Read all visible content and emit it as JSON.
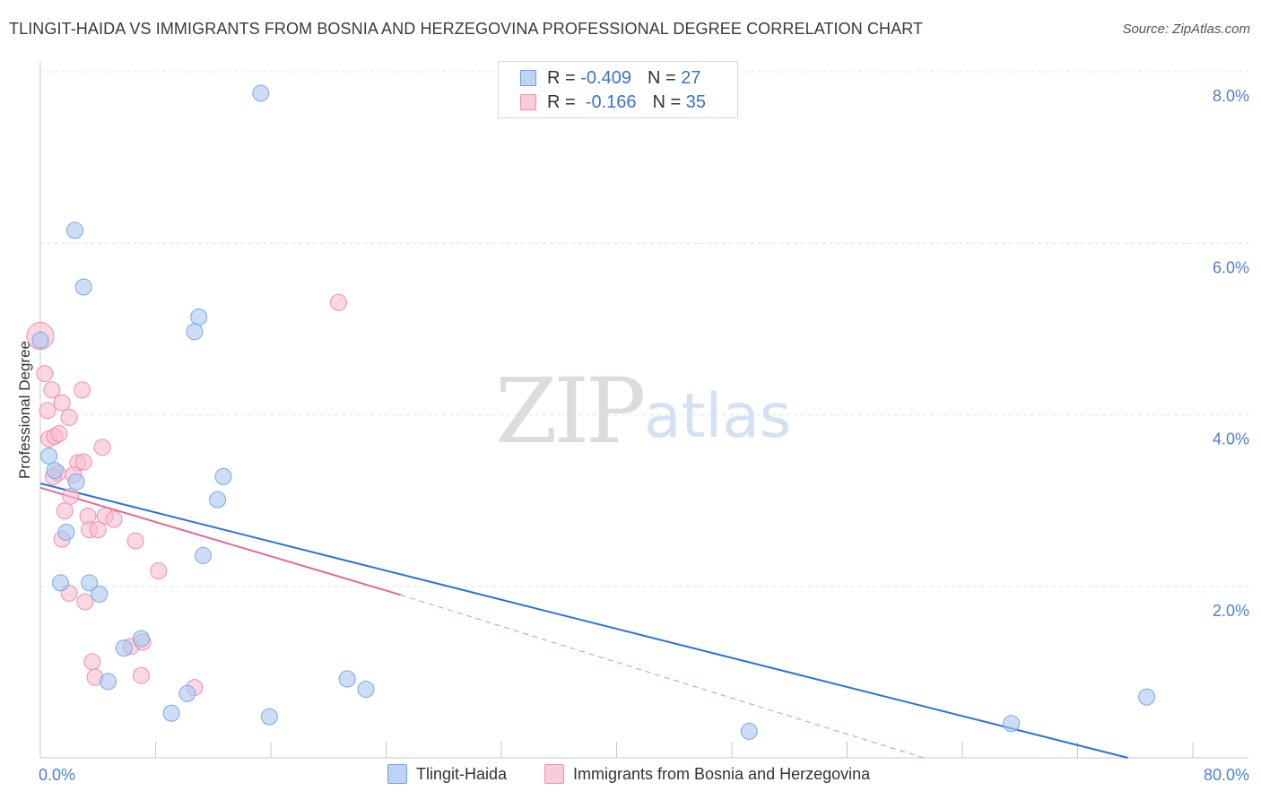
{
  "title": "TLINGIT-HAIDA VS IMMIGRANTS FROM BOSNIA AND HERZEGOVINA PROFESSIONAL DEGREE CORRELATION CHART",
  "source": "Source: ZipAtlas.com",
  "watermark": {
    "zip": "ZIP",
    "atlas": "atlas"
  },
  "legend": {
    "series1": {
      "r_label": "R =",
      "r_value": "-0.409",
      "n_label": "N =",
      "n_value": "27"
    },
    "series2": {
      "r_label": "R =",
      "r_value": "-0.166",
      "n_label": "N =",
      "n_value": "35"
    }
  },
  "colors": {
    "blue_fill": "#a9c8f0",
    "blue_stroke": "#7aa7e6",
    "blue_line": "#2f72d6",
    "pink_fill": "#f7bcd0",
    "pink_stroke": "#ee8fb0",
    "pink_line": "#e06a98",
    "grid": "#e2e2e2",
    "tick_text": "#4a7fd4"
  },
  "chart_data": {
    "type": "scatter",
    "title": "TLINGIT-HAIDA VS IMMIGRANTS FROM BOSNIA AND HERZEGOVINA PROFESSIONAL DEGREE CORRELATION CHART",
    "xlabel": "",
    "ylabel": "Professional Degree",
    "xlim": [
      0,
      80
    ],
    "ylim": [
      0,
      8.0
    ],
    "x_tick_labels": {
      "min": "0.0%",
      "max": "80.0%"
    },
    "y_ticks": [
      {
        "value": 2,
        "label": "2.0%"
      },
      {
        "value": 4,
        "label": "4.0%"
      },
      {
        "value": 6,
        "label": "6.0%"
      },
      {
        "value": 8,
        "label": "8.0%"
      }
    ],
    "series": [
      {
        "name": "Tlingit-Haida",
        "color": "#a9c8f0",
        "points": [
          [
            0.0,
            4.87
          ],
          [
            2.4,
            6.15
          ],
          [
            3.0,
            5.49
          ],
          [
            11.0,
            5.14
          ],
          [
            10.7,
            4.97
          ],
          [
            15.3,
            7.75
          ],
          [
            0.6,
            3.52
          ],
          [
            1.0,
            3.35
          ],
          [
            2.5,
            3.22
          ],
          [
            12.7,
            3.28
          ],
          [
            12.3,
            3.01
          ],
          [
            1.8,
            2.63
          ],
          [
            11.3,
            2.36
          ],
          [
            1.4,
            2.04
          ],
          [
            3.4,
            2.04
          ],
          [
            4.1,
            1.91
          ],
          [
            7.0,
            1.39
          ],
          [
            5.8,
            1.28
          ],
          [
            4.7,
            0.89
          ],
          [
            10.2,
            0.75
          ],
          [
            9.1,
            0.52
          ],
          [
            15.9,
            0.48
          ],
          [
            21.3,
            0.92
          ],
          [
            22.6,
            0.8
          ],
          [
            49.2,
            0.31
          ],
          [
            67.4,
            0.4
          ],
          [
            76.8,
            0.71
          ]
        ],
        "trend": {
          "x": [
            0,
            75.5
          ],
          "y": [
            3.2,
            0.0
          ]
        }
      },
      {
        "name": "Immigrants from Bosnia and Herzegovina",
        "color": "#f7bcd0",
        "points": [
          [
            0.0,
            4.92
          ],
          [
            0.3,
            4.48
          ],
          [
            0.5,
            4.05
          ],
          [
            0.8,
            4.29
          ],
          [
            1.5,
            4.14
          ],
          [
            2.0,
            3.97
          ],
          [
            2.9,
            4.29
          ],
          [
            0.6,
            3.72
          ],
          [
            1.0,
            3.75
          ],
          [
            1.3,
            3.78
          ],
          [
            4.3,
            3.62
          ],
          [
            2.6,
            3.44
          ],
          [
            3.0,
            3.45
          ],
          [
            1.2,
            3.32
          ],
          [
            2.3,
            3.3
          ],
          [
            2.1,
            3.05
          ],
          [
            1.7,
            2.88
          ],
          [
            1.5,
            2.55
          ],
          [
            3.3,
            2.82
          ],
          [
            4.5,
            2.82
          ],
          [
            5.1,
            2.78
          ],
          [
            3.4,
            2.66
          ],
          [
            4.0,
            2.66
          ],
          [
            6.6,
            2.53
          ],
          [
            8.2,
            2.18
          ],
          [
            2.0,
            1.92
          ],
          [
            3.1,
            1.82
          ],
          [
            20.7,
            5.31
          ],
          [
            6.3,
            1.3
          ],
          [
            7.1,
            1.35
          ],
          [
            3.6,
            1.12
          ],
          [
            3.8,
            0.94
          ],
          [
            7.0,
            0.96
          ],
          [
            10.7,
            0.82
          ],
          [
            0.9,
            3.28
          ]
        ],
        "trend": {
          "x": [
            0,
            25
          ],
          "y": [
            3.15,
            1.9
          ]
        },
        "trend_extension": {
          "x": [
            25,
            61.3
          ],
          "y": [
            1.9,
            0.0
          ]
        }
      }
    ],
    "legend": [
      {
        "label": "Tlingit-Haida"
      },
      {
        "label": "Immigrants from Bosnia and Herzegovina"
      }
    ]
  }
}
